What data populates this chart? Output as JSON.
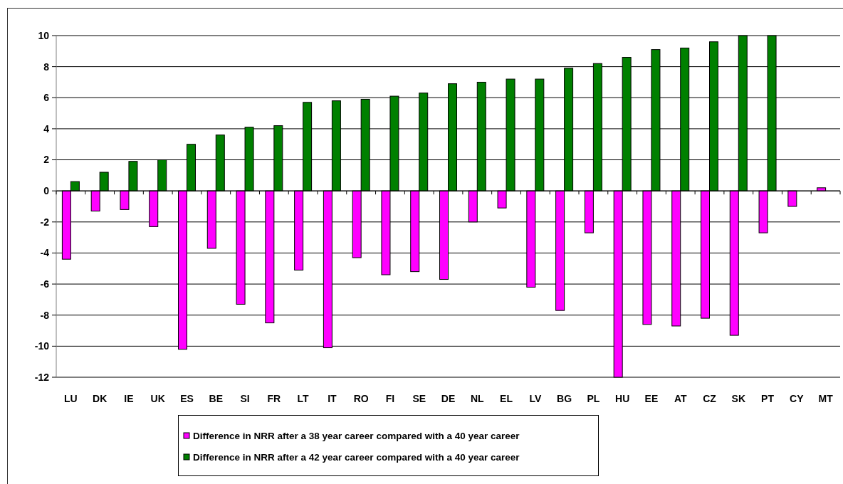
{
  "chart_data": {
    "type": "bar",
    "categories": [
      "LU",
      "DK",
      "IE",
      "UK",
      "ES",
      "BE",
      "SI",
      "FR",
      "LT",
      "IT",
      "RO",
      "FI",
      "SE",
      "DE",
      "NL",
      "EL",
      "LV",
      "BG",
      "PL",
      "HU",
      "EE",
      "AT",
      "CZ",
      "SK",
      "PT",
      "CY",
      "MT"
    ],
    "series": [
      {
        "name": "Difference in NRR after a 38 year career compared with a 40 year career",
        "color": "#ff00ff",
        "values": [
          -4.4,
          -1.3,
          -1.2,
          -2.3,
          -10.2,
          -3.7,
          -7.3,
          -8.5,
          -5.1,
          -10.1,
          -4.3,
          -5.4,
          -5.2,
          -5.7,
          -2.0,
          -1.1,
          -6.2,
          -7.7,
          -2.7,
          -12,
          -8.6,
          -8.7,
          -8.2,
          -9.3,
          -2.7,
          -1.0,
          0.2
        ]
      },
      {
        "name": "Difference in NRR after a 42 year career compared with a 40 year career",
        "color": "#008000",
        "values": [
          0.6,
          1.2,
          1.9,
          2.0,
          3.0,
          3.6,
          4.1,
          4.2,
          5.7,
          5.8,
          5.9,
          6.1,
          6.3,
          6.9,
          7.0,
          7.2,
          7.2,
          7.9,
          8.2,
          8.6,
          9.1,
          9.2,
          9.6,
          10,
          10,
          null,
          null
        ]
      }
    ],
    "ylim": [
      -12,
      10
    ],
    "yticks": [
      -12,
      -10,
      -8,
      -6,
      -4,
      -2,
      0,
      2,
      4,
      6,
      8,
      10
    ],
    "grid": "y",
    "legend": "bottom"
  }
}
